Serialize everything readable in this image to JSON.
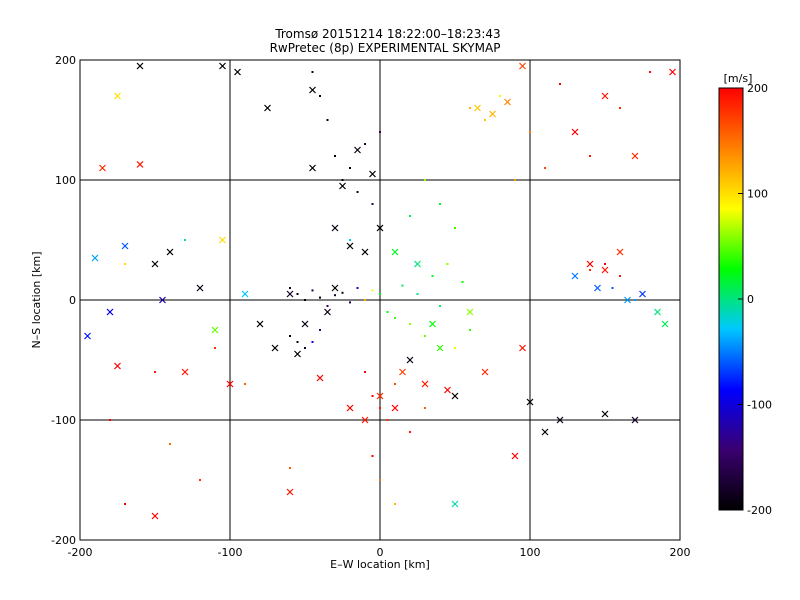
{
  "chart_data": {
    "type": "scatter",
    "title": "Tromsø 20151214 18:22:00–18:23:43",
    "subtitle": "RwPretec (8p) EXPERIMENTAL SKYMAP",
    "xlabel": "E–W location [km]",
    "ylabel": "N–S location [km]",
    "xlim": [
      -200,
      200
    ],
    "ylim": [
      -200,
      200
    ],
    "xticks": [
      -200,
      -100,
      0,
      100,
      200
    ],
    "yticks": [
      -200,
      -100,
      0,
      100,
      200
    ],
    "grid": true,
    "colorbar": {
      "label": "[m/s]",
      "min": -200,
      "max": 200,
      "ticks": [
        200,
        100,
        0,
        -100,
        -200
      ],
      "colormap": [
        "#000000",
        "#3a0070",
        "#0000ff",
        "#00c8ff",
        "#00ff00",
        "#ffff00",
        "#ff8000",
        "#ff0000"
      ]
    },
    "series": [
      {
        "marker": "dot",
        "points": [
          [
            -60,
            10,
            -180
          ],
          [
            -55,
            5,
            -190
          ],
          [
            -50,
            0,
            -200
          ],
          [
            -45,
            8,
            -170
          ],
          [
            -40,
            2,
            -200
          ],
          [
            -35,
            -5,
            -150
          ],
          [
            -30,
            4,
            -180
          ],
          [
            -25,
            6,
            -190
          ],
          [
            -20,
            -2,
            -160
          ],
          [
            -15,
            10,
            -120
          ],
          [
            -10,
            0,
            120
          ],
          [
            -5,
            8,
            80
          ],
          [
            0,
            5,
            20
          ],
          [
            5,
            -10,
            30
          ],
          [
            10,
            -15,
            40
          ],
          [
            15,
            12,
            10
          ],
          [
            20,
            -20,
            60
          ],
          [
            25,
            5,
            0
          ],
          [
            30,
            -30,
            50
          ],
          [
            35,
            20,
            20
          ],
          [
            40,
            -5,
            10
          ],
          [
            45,
            30,
            60
          ],
          [
            50,
            -40,
            80
          ],
          [
            55,
            15,
            30
          ],
          [
            60,
            -25,
            40
          ],
          [
            -60,
            -30,
            -200
          ],
          [
            -55,
            -35,
            -190
          ],
          [
            -50,
            -40,
            -180
          ],
          [
            -45,
            -35,
            -100
          ],
          [
            -40,
            -25,
            -130
          ],
          [
            -30,
            120,
            -200
          ],
          [
            -25,
            100,
            -190
          ],
          [
            -20,
            110,
            -200
          ],
          [
            -15,
            90,
            -180
          ],
          [
            -10,
            130,
            -170
          ],
          [
            -5,
            80,
            -160
          ],
          [
            0,
            140,
            -150
          ],
          [
            -35,
            150,
            -200
          ],
          [
            -40,
            170,
            -200
          ],
          [
            -45,
            190,
            -190
          ],
          [
            60,
            160,
            120
          ],
          [
            70,
            150,
            110
          ],
          [
            80,
            170,
            90
          ],
          [
            100,
            140,
            150
          ],
          [
            120,
            180,
            200
          ],
          [
            140,
            120,
            190
          ],
          [
            160,
            160,
            180
          ],
          [
            180,
            190,
            200
          ],
          [
            110,
            110,
            170
          ],
          [
            90,
            100,
            130
          ],
          [
            150,
            30,
            200
          ],
          [
            160,
            20,
            190
          ],
          [
            140,
            25,
            180
          ],
          [
            155,
            10,
            -60
          ],
          [
            170,
            0,
            -40
          ],
          [
            -5,
            -80,
            200
          ],
          [
            0,
            -90,
            190
          ],
          [
            5,
            -100,
            180
          ],
          [
            10,
            -70,
            170
          ],
          [
            -10,
            -60,
            200
          ],
          [
            0,
            -150,
            150
          ],
          [
            10,
            -170,
            120
          ],
          [
            -5,
            -130,
            200
          ],
          [
            20,
            -110,
            190
          ],
          [
            30,
            -90,
            160
          ],
          [
            30,
            100,
            60
          ],
          [
            40,
            80,
            20
          ],
          [
            20,
            70,
            10
          ],
          [
            50,
            60,
            40
          ],
          [
            -20,
            50,
            -20
          ],
          [
            -110,
            -40,
            180
          ],
          [
            -150,
            -60,
            190
          ],
          [
            -170,
            30,
            100
          ],
          [
            -130,
            50,
            -10
          ],
          [
            -90,
            -70,
            160
          ],
          [
            -180,
            -100,
            200
          ],
          [
            -140,
            -120,
            150
          ],
          [
            -120,
            -150,
            180
          ],
          [
            -170,
            -170,
            200
          ],
          [
            -60,
            -140,
            160
          ]
        ]
      },
      {
        "marker": "cross",
        "points": [
          [
            -160,
            195,
            -200
          ],
          [
            -105,
            195,
            -200
          ],
          [
            -95,
            190,
            -200
          ],
          [
            -75,
            160,
            -200
          ],
          [
            -45,
            175,
            -200
          ],
          [
            -30,
            60,
            -190
          ],
          [
            -20,
            45,
            -200
          ],
          [
            -10,
            40,
            -200
          ],
          [
            -150,
            30,
            -200
          ],
          [
            -140,
            40,
            -200
          ],
          [
            -120,
            10,
            -190
          ],
          [
            -80,
            -20,
            -200
          ],
          [
            -70,
            -40,
            -200
          ],
          [
            -55,
            -45,
            -200
          ],
          [
            -50,
            -20,
            -190
          ],
          [
            -35,
            -10,
            -190
          ],
          [
            -30,
            10,
            -200
          ],
          [
            -60,
            5,
            -180
          ],
          [
            20,
            -50,
            -190
          ],
          [
            50,
            -80,
            -200
          ],
          [
            100,
            -85,
            -200
          ],
          [
            110,
            -110,
            -200
          ],
          [
            120,
            -100,
            -190
          ],
          [
            150,
            -95,
            -200
          ],
          [
            170,
            -100,
            -180
          ],
          [
            -170,
            45,
            -60
          ],
          [
            -190,
            35,
            -40
          ],
          [
            -180,
            -10,
            -90
          ],
          [
            -145,
            0,
            -120
          ],
          [
            -105,
            50,
            100
          ],
          [
            -185,
            110,
            180
          ],
          [
            -160,
            113,
            190
          ],
          [
            -175,
            -55,
            200
          ],
          [
            -130,
            -60,
            190
          ],
          [
            -100,
            -70,
            200
          ],
          [
            -40,
            -65,
            200
          ],
          [
            -20,
            -90,
            200
          ],
          [
            -10,
            -100,
            190
          ],
          [
            0,
            -80,
            180
          ],
          [
            10,
            -90,
            200
          ],
          [
            15,
            -60,
            170
          ],
          [
            30,
            -70,
            190
          ],
          [
            45,
            -75,
            200
          ],
          [
            70,
            -60,
            180
          ],
          [
            95,
            -40,
            190
          ],
          [
            140,
            30,
            200
          ],
          [
            150,
            25,
            190
          ],
          [
            160,
            40,
            180
          ],
          [
            130,
            20,
            -50
          ],
          [
            145,
            10,
            -60
          ],
          [
            165,
            0,
            -40
          ],
          [
            175,
            5,
            -70
          ],
          [
            185,
            -10,
            0
          ],
          [
            190,
            -20,
            10
          ],
          [
            -175,
            170,
            100
          ],
          [
            65,
            160,
            110
          ],
          [
            75,
            155,
            120
          ],
          [
            85,
            165,
            140
          ],
          [
            95,
            195,
            170
          ],
          [
            130,
            140,
            200
          ],
          [
            150,
            170,
            190
          ],
          [
            170,
            120,
            180
          ],
          [
            195,
            190,
            200
          ],
          [
            -45,
            110,
            -200
          ],
          [
            -25,
            95,
            -200
          ],
          [
            -15,
            125,
            -190
          ],
          [
            -5,
            105,
            -200
          ],
          [
            0,
            60,
            -200
          ],
          [
            10,
            40,
            20
          ],
          [
            25,
            30,
            0
          ],
          [
            35,
            -20,
            30
          ],
          [
            40,
            -40,
            40
          ],
          [
            60,
            -10,
            60
          ],
          [
            -90,
            5,
            -30
          ],
          [
            -110,
            -25,
            50
          ],
          [
            -150,
            -180,
            200
          ],
          [
            -60,
            -160,
            190
          ],
          [
            50,
            -170,
            -10
          ],
          [
            90,
            -130,
            200
          ],
          [
            -195,
            -30,
            -80
          ]
        ]
      }
    ]
  }
}
